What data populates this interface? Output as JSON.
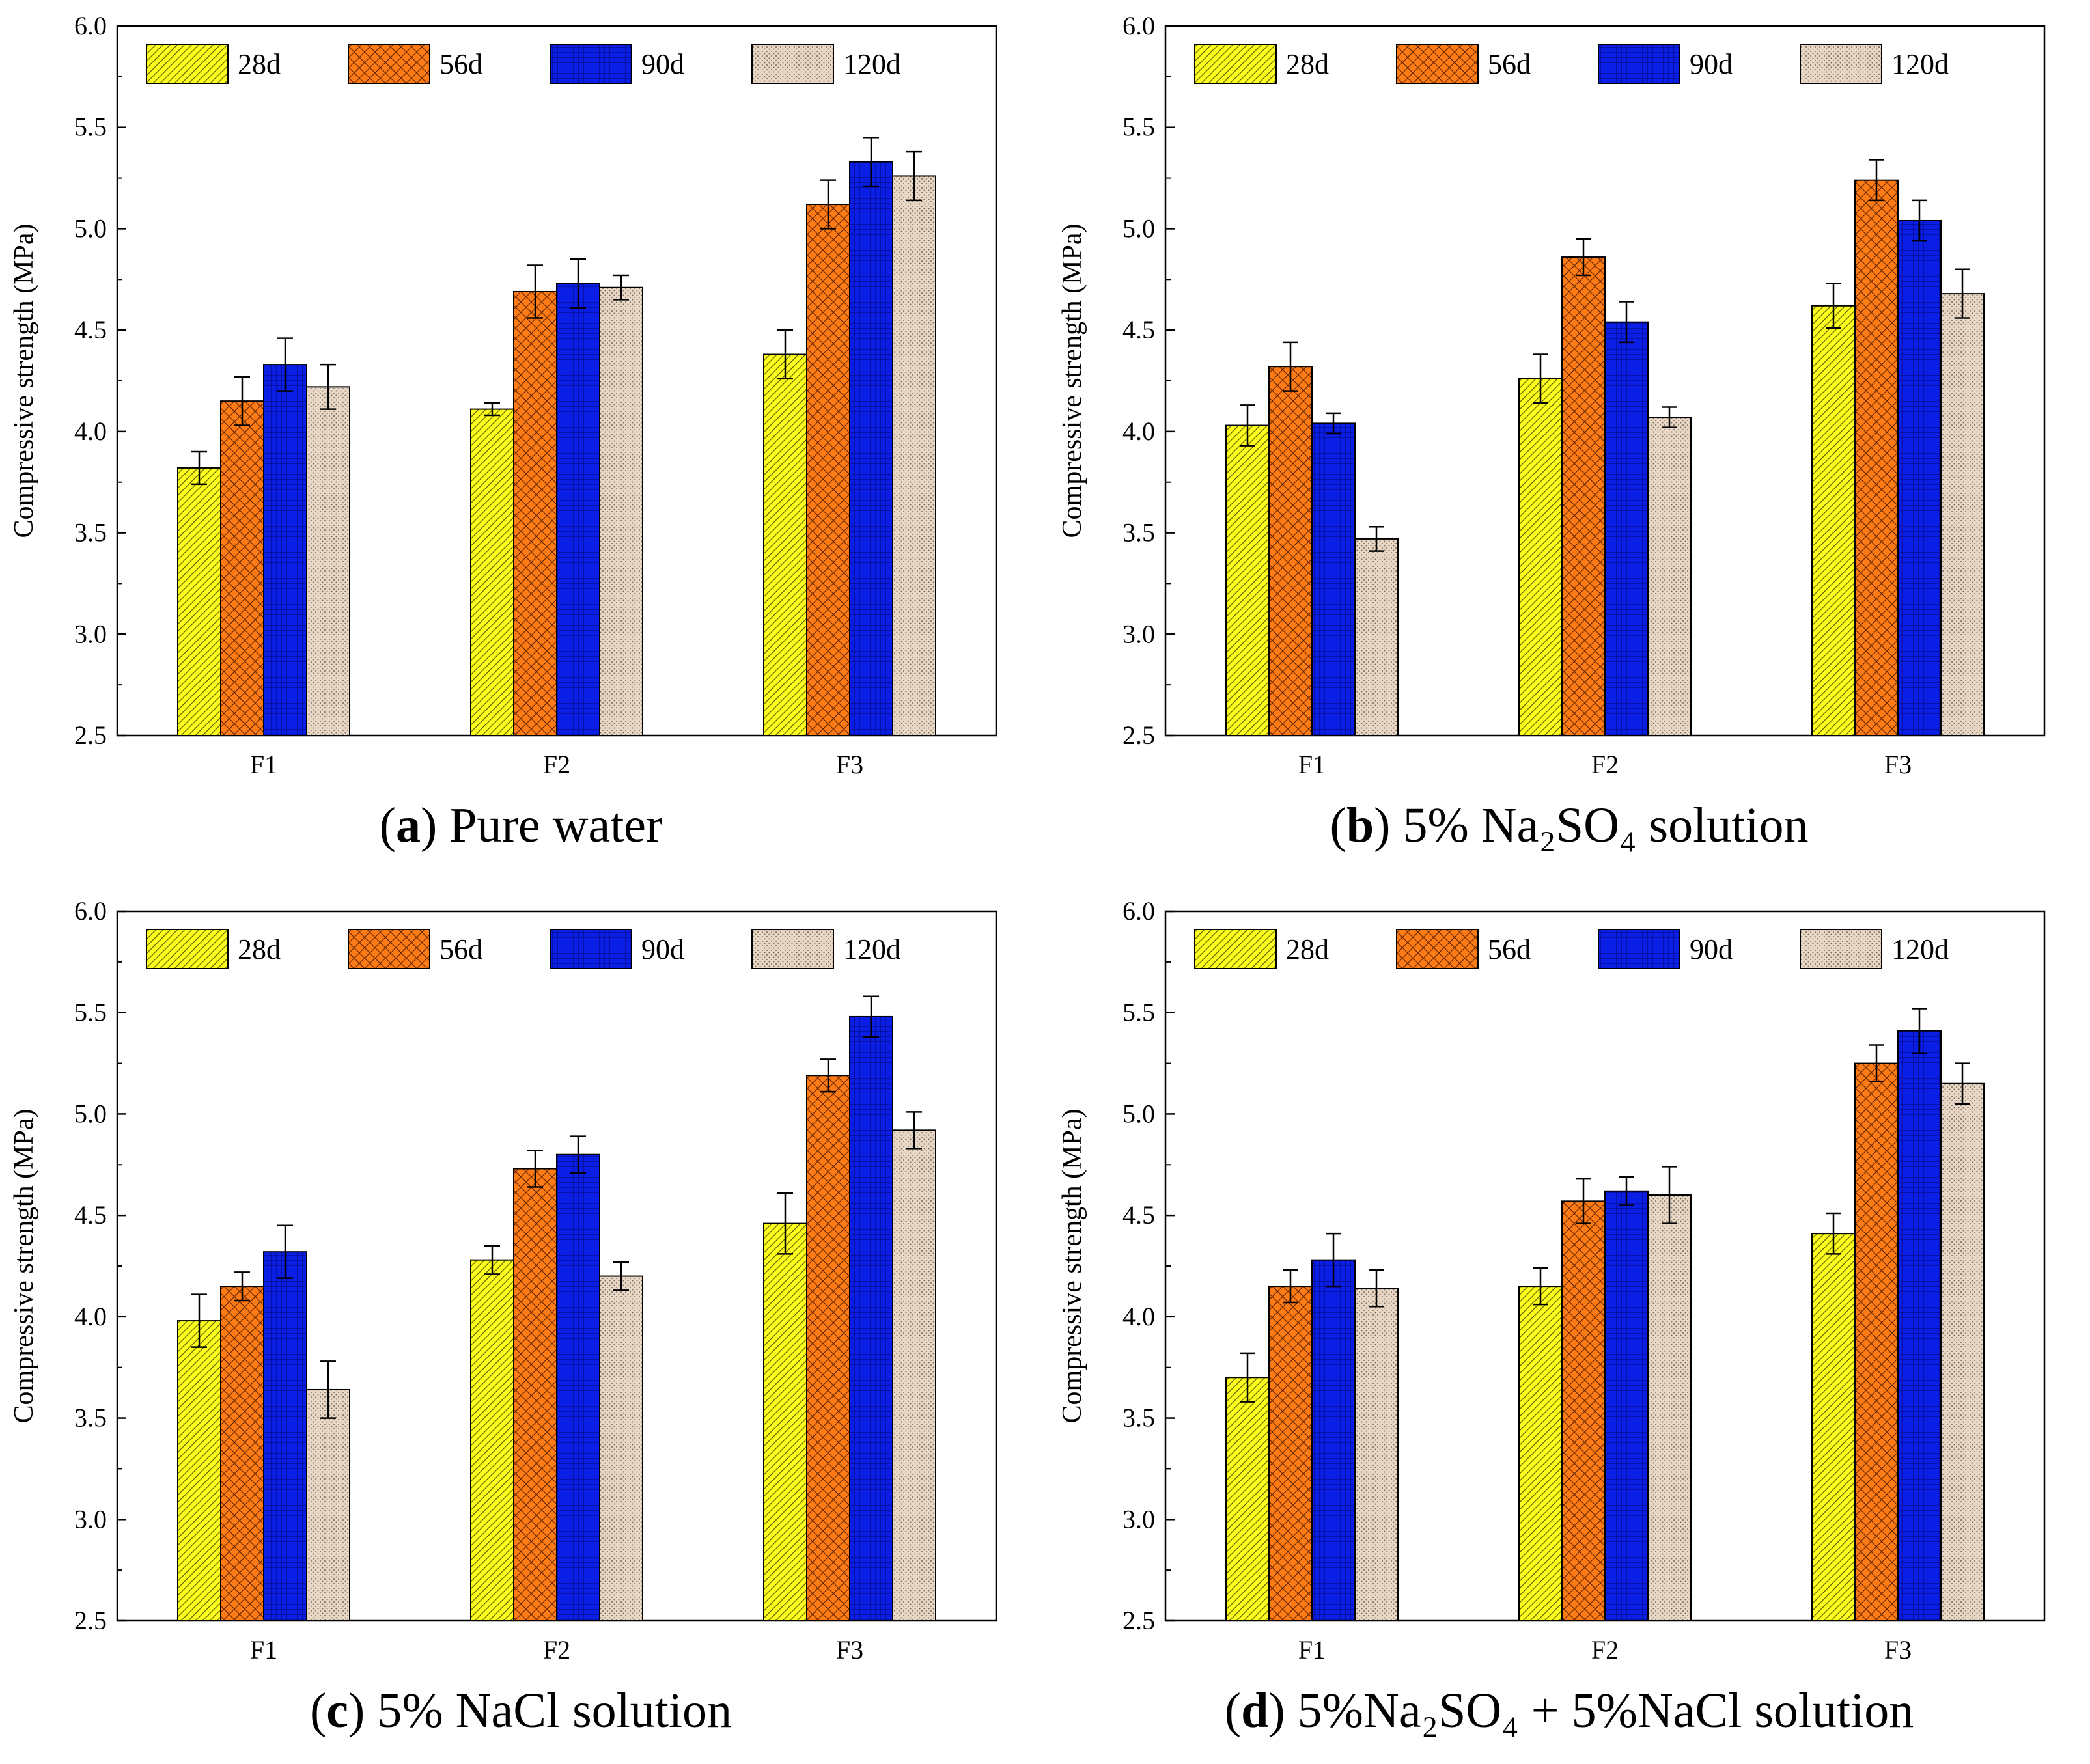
{
  "chart_data": [
    {
      "type": "bar",
      "panel_letter": "a",
      "caption_text": "Pure water",
      "categories": [
        "F1",
        "F2",
        "F3"
      ],
      "ylabel": "Compressive strength (MPa)",
      "xlabel": "",
      "ylim": [
        2.5,
        6.0
      ],
      "yticks": [
        "2.5",
        "3.0",
        "3.5",
        "4.0",
        "4.5",
        "5.0",
        "5.5",
        "6.0"
      ],
      "legend_position": "top",
      "series": [
        {
          "name": "28d",
          "values": [
            3.82,
            4.11,
            4.38
          ],
          "errors": [
            0.08,
            0.03,
            0.12
          ]
        },
        {
          "name": "56d",
          "values": [
            4.15,
            4.69,
            5.12
          ],
          "errors": [
            0.12,
            0.13,
            0.12
          ]
        },
        {
          "name": "90d",
          "values": [
            4.33,
            4.73,
            5.33
          ],
          "errors": [
            0.13,
            0.12,
            0.12
          ]
        },
        {
          "name": "120d",
          "values": [
            4.22,
            4.71,
            5.26
          ],
          "errors": [
            0.11,
            0.06,
            0.12
          ]
        }
      ]
    },
    {
      "type": "bar",
      "panel_letter": "b",
      "caption_text": "5% Na₂SO₄ solution",
      "categories": [
        "F1",
        "F2",
        "F3"
      ],
      "ylabel": "Compressive strength (MPa)",
      "xlabel": "",
      "ylim": [
        2.5,
        6.0
      ],
      "yticks": [
        "2.5",
        "3.0",
        "3.5",
        "4.0",
        "4.5",
        "5.0",
        "5.5",
        "6.0"
      ],
      "legend_position": "top",
      "series": [
        {
          "name": "28d",
          "values": [
            4.03,
            4.26,
            4.62
          ],
          "errors": [
            0.1,
            0.12,
            0.11
          ]
        },
        {
          "name": "56d",
          "values": [
            4.32,
            4.86,
            5.24
          ],
          "errors": [
            0.12,
            0.09,
            0.1
          ]
        },
        {
          "name": "90d",
          "values": [
            4.04,
            4.54,
            5.04
          ],
          "errors": [
            0.05,
            0.1,
            0.1
          ]
        },
        {
          "name": "120d",
          "values": [
            3.47,
            4.07,
            4.68
          ],
          "errors": [
            0.06,
            0.05,
            0.12
          ]
        }
      ]
    },
    {
      "type": "bar",
      "panel_letter": "c",
      "caption_text": "5% NaCl solution",
      "categories": [
        "F1",
        "F2",
        "F3"
      ],
      "ylabel": "Compressive strength (MPa)",
      "xlabel": "",
      "ylim": [
        2.5,
        6.0
      ],
      "yticks": [
        "2.5",
        "3.0",
        "3.5",
        "4.0",
        "4.5",
        "5.0",
        "5.5",
        "6.0"
      ],
      "legend_position": "top",
      "series": [
        {
          "name": "28d",
          "values": [
            3.98,
            4.28,
            4.46
          ],
          "errors": [
            0.13,
            0.07,
            0.15
          ]
        },
        {
          "name": "56d",
          "values": [
            4.15,
            4.73,
            5.19
          ],
          "errors": [
            0.07,
            0.09,
            0.08
          ]
        },
        {
          "name": "90d",
          "values": [
            4.32,
            4.8,
            5.48
          ],
          "errors": [
            0.13,
            0.09,
            0.1
          ]
        },
        {
          "name": "120d",
          "values": [
            3.64,
            4.2,
            4.92
          ],
          "errors": [
            0.14,
            0.07,
            0.09
          ]
        }
      ]
    },
    {
      "type": "bar",
      "panel_letter": "d",
      "caption_text": "5%Na₂SO₄ + 5%NaCl solution",
      "categories": [
        "F1",
        "F2",
        "F3"
      ],
      "ylabel": "Compressive strength (MPa)",
      "xlabel": "",
      "ylim": [
        2.5,
        6.0
      ],
      "yticks": [
        "2.5",
        "3.0",
        "3.5",
        "4.0",
        "4.5",
        "5.0",
        "5.5",
        "6.0"
      ],
      "legend_position": "top",
      "series": [
        {
          "name": "28d",
          "values": [
            3.7,
            4.15,
            4.41
          ],
          "errors": [
            0.12,
            0.09,
            0.1
          ]
        },
        {
          "name": "56d",
          "values": [
            4.15,
            4.57,
            5.25
          ],
          "errors": [
            0.08,
            0.11,
            0.09
          ]
        },
        {
          "name": "90d",
          "values": [
            4.28,
            4.62,
            5.41
          ],
          "errors": [
            0.13,
            0.07,
            0.11
          ]
        },
        {
          "name": "120d",
          "values": [
            4.14,
            4.6,
            5.15
          ],
          "errors": [
            0.09,
            0.14,
            0.1
          ]
        }
      ]
    }
  ],
  "series_colors": {
    "28d": "#ffff1e",
    "56d": "#ff7b16",
    "90d": "#0b1ee6",
    "120d": "#e7d7c4"
  }
}
